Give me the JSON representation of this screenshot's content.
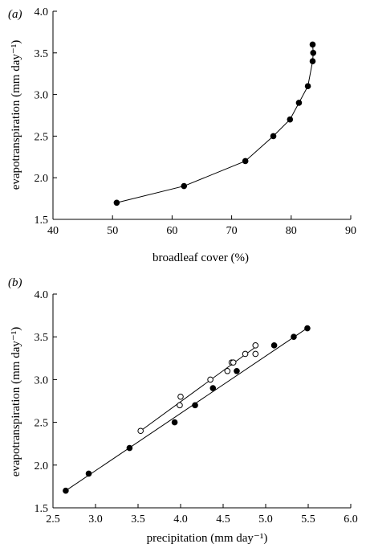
{
  "chart_data": [
    {
      "type": "line",
      "panel_label": "(a)",
      "xlabel": "broadleaf cover (%)",
      "ylabel": "evapotranspiration (mm day⁻¹)",
      "xlim": [
        40,
        90
      ],
      "ylim": [
        1.5,
        4.0
      ],
      "xticks": [
        "40",
        "50",
        "60",
        "70",
        "80",
        "90"
      ],
      "yticks": [
        "1.5",
        "2.0",
        "2.5",
        "3.0",
        "3.5",
        "4.0"
      ],
      "grid": false,
      "series": [
        {
          "marker": "filled",
          "line": "connected",
          "x": [
            50.7,
            62.0,
            72.3,
            77.0,
            79.8,
            81.3,
            82.8,
            83.6,
            83.7,
            83.6
          ],
          "y": [
            1.7,
            1.9,
            2.2,
            2.5,
            2.7,
            2.9,
            3.1,
            3.4,
            3.5,
            3.6
          ]
        }
      ]
    },
    {
      "type": "scatter",
      "panel_label": "(b)",
      "xlabel": "precipitation (mm day⁻¹)",
      "ylabel": "evapotranspiration (mm day⁻¹)",
      "xlim": [
        2.5,
        6.0
      ],
      "ylim": [
        1.5,
        4.0
      ],
      "xticks": [
        "2.5",
        "3.0",
        "3.5",
        "4.0",
        "4.5",
        "5.0",
        "5.5",
        "6.0"
      ],
      "yticks": [
        "1.5",
        "2.0",
        "2.5",
        "3.0",
        "3.5",
        "4.0"
      ],
      "grid": false,
      "series": [
        {
          "marker": "filled",
          "fit_line": {
            "x": [
              2.65,
              5.5
            ],
            "y": [
              1.7,
              3.61
            ]
          },
          "x": [
            2.65,
            2.92,
            3.4,
            3.93,
            4.17,
            4.38,
            4.66,
            5.1,
            5.33,
            5.49
          ],
          "y": [
            1.7,
            1.9,
            2.2,
            2.5,
            2.7,
            2.9,
            3.1,
            3.4,
            3.5,
            3.6
          ]
        },
        {
          "marker": "open",
          "fit_line": {
            "x": [
              3.53,
              4.88
            ],
            "y": [
              2.4,
              3.38
            ]
          },
          "x": [
            3.53,
            3.99,
            4.0,
            4.35,
            4.55,
            4.6,
            4.62,
            4.76,
            4.88,
            4.88
          ],
          "y": [
            2.4,
            2.7,
            2.8,
            3.0,
            3.1,
            3.2,
            3.2,
            3.3,
            3.3,
            3.4
          ]
        }
      ]
    }
  ]
}
